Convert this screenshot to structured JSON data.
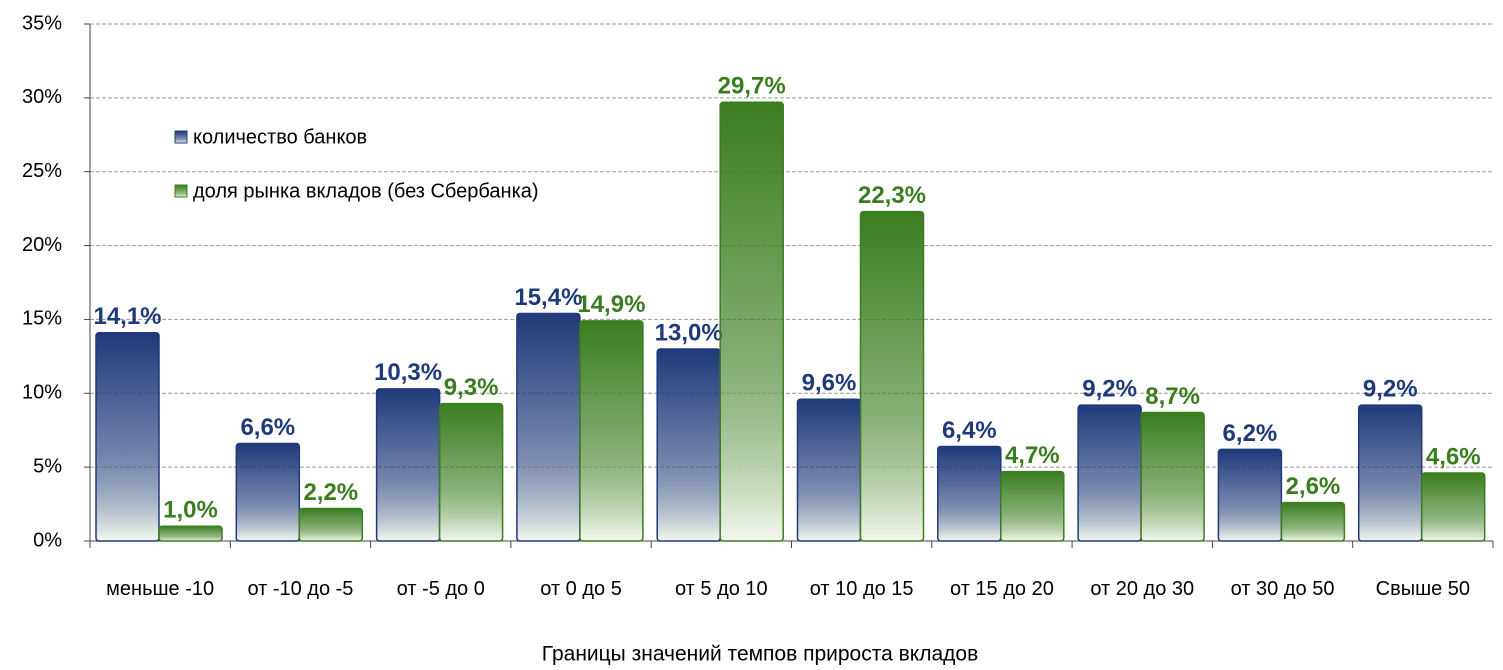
{
  "chart_data": {
    "type": "bar",
    "x_label": "Границы значений темпов прироста вкладов",
    "categories": [
      "меньше -10",
      "от -10 до -5",
      "от -5 до 0",
      "от 0 до 5",
      "от 5 до 10",
      "от 10 до 15",
      "от 15 до 20",
      "от 20 до 30",
      "от 30 до 50",
      "Свыше 50"
    ],
    "series": [
      {
        "name": "количество банков",
        "color": "#1f3a7a",
        "values": [
          14.1,
          6.6,
          10.3,
          15.4,
          13.0,
          9.6,
          6.4,
          9.2,
          6.2,
          9.2
        ],
        "value_labels": [
          "14,1%",
          "6,6%",
          "10,3%",
          "15,4%",
          "13,0%",
          "9,6%",
          "6,4%",
          "9,2%",
          "6,2%",
          "9,2%"
        ]
      },
      {
        "name": "доля рынка вкладов (без Сбербанка)",
        "color": "#3a7d1f",
        "values": [
          1.0,
          2.2,
          9.3,
          14.9,
          29.7,
          22.3,
          4.7,
          8.7,
          2.6,
          4.6
        ],
        "value_labels": [
          "1,0%",
          "2,2%",
          "9,3%",
          "14,9%",
          "29,7%",
          "22,3%",
          "4,7%",
          "8,7%",
          "2,6%",
          "4,6%"
        ]
      }
    ],
    "ylim": [
      0,
      35
    ],
    "yticks": [
      {
        "value": 0,
        "label": "0%"
      },
      {
        "value": 5,
        "label": "5%"
      },
      {
        "value": 10,
        "label": "10%"
      },
      {
        "value": 15,
        "label": "15%"
      },
      {
        "value": 20,
        "label": "20%"
      },
      {
        "value": 25,
        "label": "25%"
      },
      {
        "value": 30,
        "label": "30%"
      },
      {
        "value": 35,
        "label": "35%"
      }
    ],
    "grid": true,
    "legend": "upper-left"
  }
}
